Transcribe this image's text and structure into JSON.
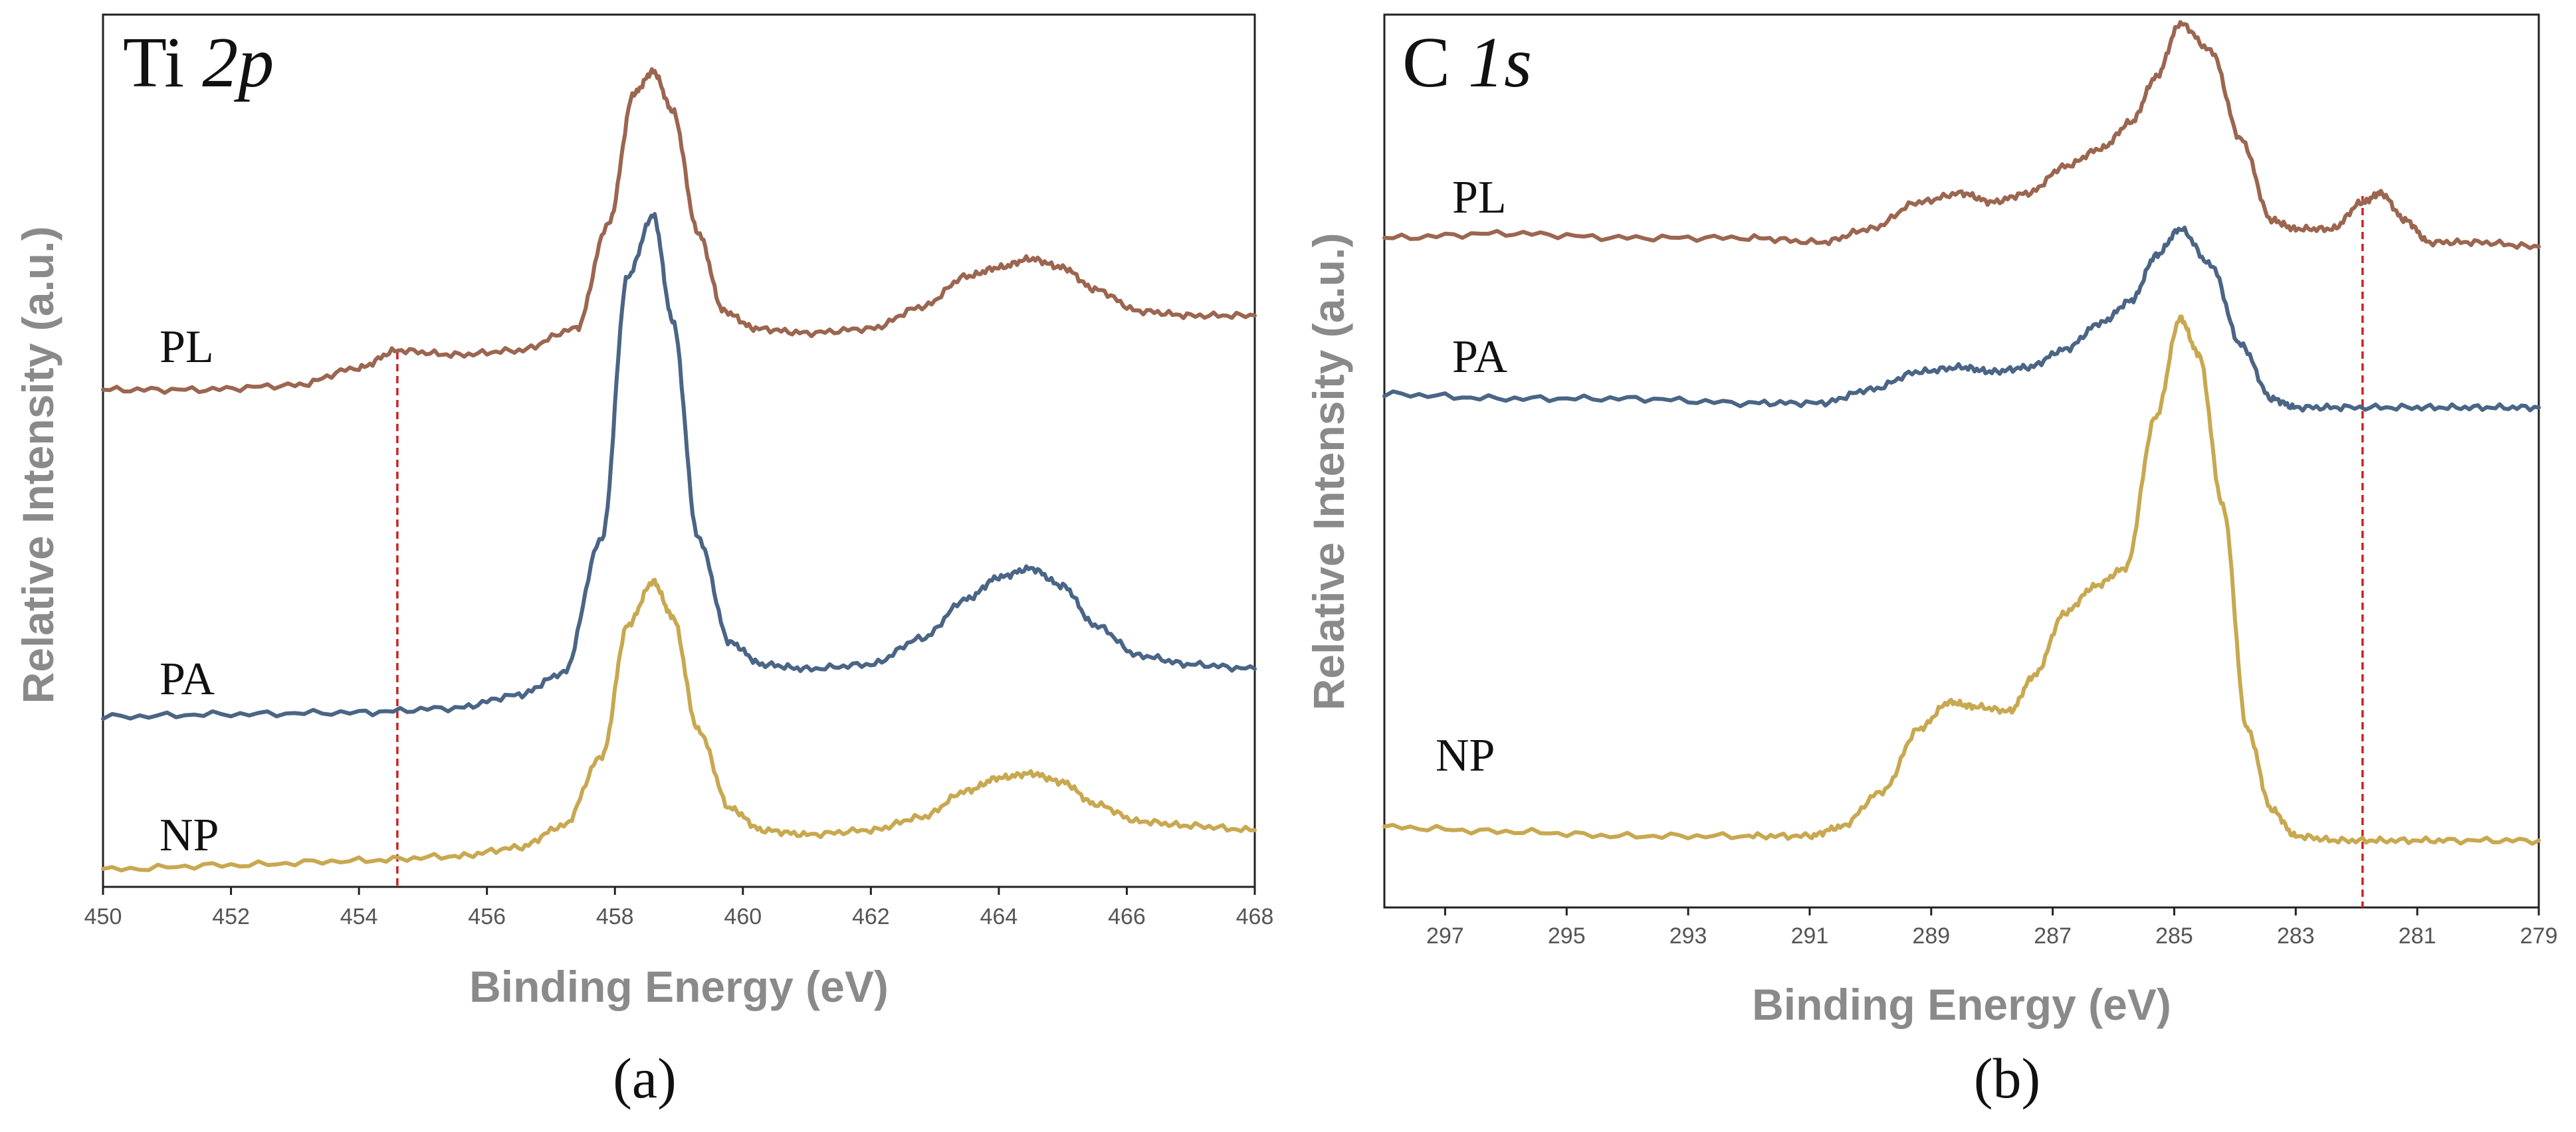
{
  "chart_data": [
    {
      "id": "a",
      "type": "line",
      "title_main": "Ti ",
      "title_italic": "2p",
      "caption": "(a)",
      "xlabel": "Binding Energy (eV)",
      "ylabel": "Relative Intensity (a.u.)",
      "xlim": [
        450,
        468
      ],
      "x_reversed": false,
      "xticks": [
        450,
        452,
        454,
        456,
        458,
        460,
        462,
        464,
        466,
        468
      ],
      "ylim": [
        0,
        1
      ],
      "vline_marker": {
        "x": 454.6,
        "color": "#cc2222"
      },
      "series": [
        {
          "name": "PL",
          "color": "#9b6650",
          "x": [
            450,
            451.5,
            453,
            454,
            454.6,
            455.5,
            456.5,
            457.4,
            457.9,
            458.3,
            458.6,
            458.9,
            459.3,
            459.7,
            460.2,
            461,
            462,
            462.8,
            463.5,
            464,
            464.5,
            465,
            465.5,
            466.2,
            467,
            468
          ],
          "y": [
            0.57,
            0.57,
            0.575,
            0.595,
            0.615,
            0.61,
            0.615,
            0.64,
            0.76,
            0.91,
            0.935,
            0.89,
            0.75,
            0.66,
            0.64,
            0.635,
            0.64,
            0.665,
            0.7,
            0.71,
            0.72,
            0.71,
            0.685,
            0.66,
            0.655,
            0.655
          ]
        },
        {
          "name": "PA",
          "color": "#4a6585",
          "x": [
            450,
            452,
            454,
            455.5,
            456.5,
            457.2,
            457.8,
            458.2,
            458.6,
            458.9,
            459.3,
            459.8,
            460.3,
            461,
            462,
            462.8,
            463.5,
            464,
            464.5,
            465,
            465.5,
            466.2,
            467,
            468
          ],
          "y": [
            0.195,
            0.198,
            0.2,
            0.205,
            0.22,
            0.245,
            0.4,
            0.7,
            0.77,
            0.65,
            0.4,
            0.28,
            0.255,
            0.25,
            0.255,
            0.285,
            0.33,
            0.355,
            0.365,
            0.345,
            0.3,
            0.265,
            0.255,
            0.25
          ]
        },
        {
          "name": "NP",
          "color": "#c8a850",
          "x": [
            450,
            452,
            454,
            455.5,
            456.5,
            457.2,
            457.8,
            458.2,
            458.6,
            458.9,
            459.3,
            459.8,
            460.3,
            461,
            462,
            462.8,
            463.5,
            464,
            464.5,
            465,
            465.5,
            466.2,
            467,
            468
          ],
          "y": [
            0.02,
            0.025,
            0.03,
            0.035,
            0.045,
            0.07,
            0.15,
            0.3,
            0.35,
            0.31,
            0.18,
            0.09,
            0.065,
            0.06,
            0.065,
            0.08,
            0.11,
            0.125,
            0.13,
            0.12,
            0.095,
            0.075,
            0.07,
            0.065
          ]
        }
      ]
    },
    {
      "id": "b",
      "type": "line",
      "title_main": "C ",
      "title_italic": "1s",
      "caption": "(b)",
      "xlabel": "Binding Energy (eV)",
      "ylabel": "Relative Intensity (a.u.)",
      "xlim": [
        298,
        279
      ],
      "x_reversed": true,
      "xticks": [
        297,
        295,
        293,
        291,
        289,
        287,
        285,
        283,
        281,
        279
      ],
      "ylim": [
        0,
        1
      ],
      "vline_marker": {
        "x": 281.9,
        "color": "#cc2222"
      },
      "series": [
        {
          "name": "PL",
          "color": "#9b6650",
          "x": [
            298,
            296,
            294,
            292,
            290.8,
            290,
            289.2,
            288.5,
            288,
            287.4,
            286.8,
            286.2,
            285.7,
            285.3,
            284.9,
            284.4,
            283.9,
            283.4,
            283,
            282.4,
            281.9,
            281.6,
            281.2,
            280.8,
            280,
            279
          ],
          "y": [
            0.75,
            0.755,
            0.75,
            0.75,
            0.745,
            0.76,
            0.79,
            0.8,
            0.79,
            0.8,
            0.83,
            0.85,
            0.88,
            0.93,
            0.99,
            0.96,
            0.86,
            0.77,
            0.76,
            0.76,
            0.79,
            0.8,
            0.77,
            0.745,
            0.745,
            0.74
          ]
        },
        {
          "name": "PA",
          "color": "#4a6585",
          "x": [
            298,
            296,
            294,
            292,
            290.8,
            290,
            289.2,
            288.5,
            288,
            287.4,
            286.8,
            286.2,
            285.7,
            285.3,
            284.9,
            284.4,
            283.9,
            283.4,
            283,
            282.2,
            281,
            280,
            279
          ],
          "y": [
            0.575,
            0.57,
            0.57,
            0.565,
            0.565,
            0.58,
            0.6,
            0.605,
            0.6,
            0.605,
            0.625,
            0.655,
            0.68,
            0.73,
            0.76,
            0.72,
            0.63,
            0.57,
            0.56,
            0.56,
            0.56,
            0.56,
            0.56
          ]
        },
        {
          "name": "NP",
          "color": "#c8a850",
          "x": [
            298,
            296,
            294,
            292,
            291,
            290.5,
            289.8,
            289.2,
            288.7,
            288.3,
            287.7,
            287.3,
            286.8,
            286.3,
            285.8,
            285.3,
            284.9,
            284.6,
            284.2,
            283.8,
            283.4,
            283,
            282.3,
            281.5,
            280.5,
            279
          ],
          "y": [
            0.09,
            0.085,
            0.08,
            0.08,
            0.08,
            0.09,
            0.13,
            0.2,
            0.23,
            0.225,
            0.22,
            0.26,
            0.33,
            0.36,
            0.38,
            0.55,
            0.66,
            0.62,
            0.45,
            0.2,
            0.11,
            0.08,
            0.075,
            0.075,
            0.075,
            0.075
          ]
        }
      ]
    }
  ]
}
